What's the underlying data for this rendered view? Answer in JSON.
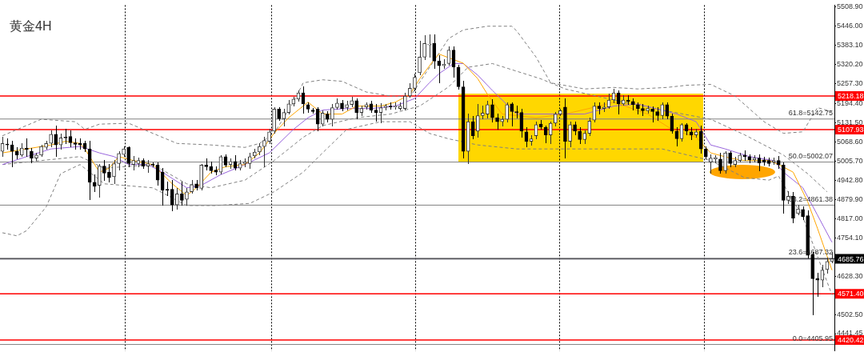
{
  "chart_data": {
    "type": "candlestick",
    "title": "黄金4H",
    "categories": [
      null,
      null,
      null,
      null,
      null,
      null,
      null,
      null,
      null,
      null,
      null,
      null,
      null,
      null,
      null,
      null,
      null,
      null,
      null,
      null,
      null,
      null,
      null,
      null,
      null,
      null,
      null,
      null,
      null,
      null,
      null,
      null,
      null,
      null,
      null,
      null,
      null,
      null,
      null,
      null,
      null,
      null,
      null,
      null,
      null,
      null,
      null,
      null,
      null,
      null,
      null,
      null,
      null,
      null,
      null,
      null,
      null,
      null,
      null,
      null,
      null,
      null,
      null,
      null,
      null,
      null,
      null,
      null,
      null,
      null,
      null,
      null,
      null,
      null,
      null,
      null,
      null,
      null,
      null,
      null,
      null,
      null,
      null,
      null,
      null,
      null,
      null,
      null,
      null,
      null,
      null,
      null,
      null,
      null,
      null,
      null,
      null,
      null,
      null,
      null,
      null,
      null,
      null,
      null,
      null,
      null,
      null,
      null,
      null,
      null,
      null,
      null,
      null,
      null,
      null,
      null,
      null,
      null,
      null,
      null,
      null,
      null,
      null,
      null,
      null,
      null,
      null,
      null,
      null,
      null,
      null,
      null,
      null,
      null,
      null,
      null,
      null,
      null,
      null,
      null,
      null,
      null,
      null,
      null,
      null,
      null,
      null,
      null,
      null,
      null,
      null,
      null,
      null,
      null,
      null,
      null,
      null,
      null,
      null,
      null,
      null,
      null,
      null,
      null,
      null,
      null,
      null,
      null,
      null,
      null,
      null,
      null
    ],
    "colors": [
      "#333333",
      "#000000",
      "#000000",
      "#000000",
      "#333333",
      "#000000",
      "#000000",
      "#333333",
      "#333333",
      "#333333",
      "#333333",
      "#000000",
      "#333333",
      "#000000",
      "#000000",
      "#000000",
      "#000000",
      "#000000",
      "#000000",
      "#000000",
      "#333333",
      "#000000",
      "#000000",
      "#333333",
      "#333333",
      "#333333",
      "#000000",
      "#333333",
      "#333333",
      "#000000",
      "#333333",
      "#000000",
      "#000000",
      "#000000",
      "#000000",
      "#000000",
      "#333333",
      "#000000",
      "#333333",
      "#333333",
      "#000000",
      "#333333",
      "#000000",
      "#000000",
      "#000000",
      "#333333",
      "#000000",
      "#333333",
      "#000000",
      "#333333",
      "#333333",
      "#333333",
      "#333333",
      "#333333",
      "#333333",
      "#333333",
      "#333333",
      "#000000",
      "#333333",
      "#333333",
      "#333333",
      "#333333",
      "#000000",
      "#000000",
      "#000000",
      "#000000",
      "#333333",
      "#000000",
      "#333333",
      "#333333",
      "#000000",
      "#333333",
      "#333333",
      "#000000",
      "#333333",
      "#333333",
      "#000000",
      "#000000",
      "#333333",
      "#333333",
      "#000000",
      "#333333",
      "#333333",
      "#333333",
      "#333333",
      "#333333",
      "#333333",
      "#333333",
      "#333333",
      "#000000",
      "#000000",
      "#333333",
      "#333333",
      "#000000",
      "#000000",
      "#000000",
      "#333333",
      "#000000",
      "#333333",
      "#333333",
      "#333333",
      "#000000",
      "#000000",
      "#333333",
      "#333333",
      "#000000",
      "#000000",
      "#000000",
      "#000000",
      "#333333",
      "#333333",
      "#000000",
      "#000000",
      "#333333",
      "#333333",
      "#333333",
      "#000000",
      "#333333",
      "#000000",
      "#000000",
      "#333333",
      "#333333",
      "#333333",
      "#000000",
      "#333333",
      "#333333",
      "#333333",
      "#000000",
      "#333333",
      "#000000",
      "#000000",
      "#000000",
      "#000000",
      "#333333",
      "#000000",
      "#000000",
      "#333333",
      "#000000",
      "#000000",
      "#000000",
      "#333333",
      "#000000",
      "#000000",
      "#333333",
      "#000000",
      "#000000",
      "#333333",
      "#333333",
      "#000000",
      "#333333",
      "#000000",
      "#333333",
      "#333333",
      "#000000",
      "#000000",
      "#333333",
      "#000000",
      "#000000",
      "#000000",
      "#333333",
      "#000000",
      "#000000",
      "#333333",
      "#000000",
      "#333333",
      "#000000",
      "#000000",
      "#000000",
      "#000000",
      "#333333",
      "#333333",
      "#333333"
    ],
    "ohlc": [
      [
        5037,
        5083,
        5020,
        5063
      ],
      [
        5060,
        5078,
        5045,
        5058
      ],
      [
        5058,
        5070,
        4987,
        5037
      ],
      [
        5037,
        5050,
        5012,
        5025
      ],
      [
        5025,
        5063,
        5020,
        5048
      ],
      [
        5048,
        5078,
        5020,
        5043
      ],
      [
        5037,
        5048,
        4999,
        5015
      ],
      [
        5015,
        5032,
        5007,
        5025
      ],
      [
        5025,
        5058,
        5020,
        5053
      ],
      [
        5050,
        5070,
        5043,
        5063
      ],
      [
        5063,
        5103,
        5053,
        5093
      ],
      [
        5093,
        5121,
        5020,
        5058
      ],
      [
        5058,
        5093,
        5045,
        5081
      ],
      [
        5083,
        5109,
        5063,
        5081
      ],
      [
        5086,
        5103,
        5053,
        5065
      ],
      [
        5065,
        5078,
        5045,
        5060
      ],
      [
        5063,
        5078,
        5045,
        5058
      ],
      [
        5063,
        5070,
        5037,
        5045
      ],
      [
        5045,
        5070,
        4880,
        4936
      ],
      [
        4936,
        4961,
        4905,
        4923
      ],
      [
        4926,
        4994,
        4888,
        4989
      ],
      [
        4989,
        5007,
        4943,
        4966
      ],
      [
        4969,
        4994,
        4936,
        4951
      ],
      [
        4954,
        5007,
        4931,
        4997
      ],
      [
        4997,
        5037,
        4976,
        5030
      ],
      [
        5027,
        5053,
        5020,
        5045
      ],
      [
        5050,
        5053,
        4987,
        4997
      ],
      [
        4994,
        5020,
        4976,
        5007
      ],
      [
        4997,
        5015,
        4987,
        5007
      ],
      [
        5007,
        5012,
        4982,
        4989
      ],
      [
        4989,
        5007,
        4969,
        4997
      ],
      [
        4994,
        4999,
        4987,
        4992
      ],
      [
        4992,
        4999,
        4926,
        4943
      ],
      [
        4969,
        4982,
        4860,
        4910
      ],
      [
        4913,
        4936,
        4893,
        4910
      ],
      [
        4913,
        4941,
        4842,
        4862
      ],
      [
        4862,
        4916,
        4847,
        4898
      ],
      [
        4898,
        4936,
        4860,
        4877
      ],
      [
        4880,
        4916,
        4860,
        4905
      ],
      [
        4905,
        4941,
        4900,
        4928
      ],
      [
        4931,
        4943,
        4910,
        4918
      ],
      [
        4916,
        4994,
        4910,
        4992
      ],
      [
        4992,
        5012,
        4976,
        4987
      ],
      [
        4987,
        5002,
        4966,
        4974
      ],
      [
        4976,
        4987,
        4961,
        4969
      ],
      [
        4969,
        5022,
        4964,
        5020
      ],
      [
        5020,
        5027,
        4987,
        4992
      ],
      [
        4994,
        5012,
        4982,
        5004
      ],
      [
        5004,
        5022,
        4976,
        4982
      ],
      [
        4982,
        5007,
        4976,
        4997
      ],
      [
        4997,
        5012,
        4987,
        5002
      ],
      [
        4997,
        5032,
        4982,
        5020
      ],
      [
        5022,
        5043,
        5015,
        5035
      ],
      [
        5035,
        5063,
        5027,
        5053
      ],
      [
        5053,
        5083,
        4987,
        5073
      ],
      [
        5070,
        5109,
        5063,
        5101
      ],
      [
        5103,
        5180,
        5096,
        5175
      ],
      [
        5175,
        5180,
        5139,
        5144
      ],
      [
        5144,
        5175,
        5121,
        5164
      ],
      [
        5164,
        5203,
        5159,
        5192
      ],
      [
        5192,
        5215,
        5185,
        5208
      ],
      [
        5208,
        5236,
        5200,
        5228
      ],
      [
        5228,
        5248,
        5162,
        5192
      ],
      [
        5190,
        5197,
        5164,
        5175
      ],
      [
        5172,
        5177,
        5162,
        5167
      ],
      [
        5175,
        5180,
        5103,
        5126
      ],
      [
        5126,
        5170,
        5119,
        5162
      ],
      [
        5159,
        5167,
        5134,
        5142
      ],
      [
        5142,
        5190,
        5121,
        5180
      ],
      [
        5180,
        5210,
        5175,
        5195
      ],
      [
        5195,
        5203,
        5170,
        5177
      ],
      [
        5180,
        5200,
        5172,
        5190
      ],
      [
        5190,
        5215,
        5182,
        5203
      ],
      [
        5203,
        5210,
        5144,
        5164
      ],
      [
        5164,
        5185,
        5154,
        5177
      ],
      [
        5182,
        5197,
        5175,
        5190
      ],
      [
        5192,
        5200,
        5164,
        5172
      ],
      [
        5172,
        5190,
        5136,
        5164
      ],
      [
        5164,
        5192,
        5131,
        5180
      ],
      [
        5180,
        5190,
        5172,
        5185
      ],
      [
        5185,
        5197,
        5175,
        5182
      ],
      [
        5182,
        5197,
        5175,
        5185
      ],
      [
        5177,
        5195,
        5172,
        5185
      ],
      [
        5177,
        5228,
        5172,
        5218
      ],
      [
        5218,
        5258,
        5213,
        5243
      ],
      [
        5243,
        5291,
        5236,
        5279
      ],
      [
        5294,
        5396,
        5286,
        5345
      ],
      [
        5345,
        5416,
        5337,
        5390
      ],
      [
        5385,
        5418,
        5345,
        5388
      ],
      [
        5390,
        5418,
        5307,
        5332
      ],
      [
        5332,
        5350,
        5261,
        5317
      ],
      [
        5317,
        5337,
        5307,
        5322
      ],
      [
        5324,
        5380,
        5319,
        5368
      ],
      [
        5368,
        5380,
        5279,
        5312
      ],
      [
        5312,
        5319,
        5241,
        5248
      ],
      [
        5248,
        5266,
        5015,
        5037
      ],
      [
        5037,
        5159,
        4997,
        5134
      ],
      [
        5134,
        5152,
        5078,
        5088
      ],
      [
        5103,
        5190,
        5083,
        5154
      ],
      [
        5154,
        5185,
        5144,
        5162
      ],
      [
        5159,
        5200,
        5147,
        5190
      ],
      [
        5190,
        5205,
        5134,
        5147
      ],
      [
        5147,
        5159,
        5109,
        5134
      ],
      [
        5134,
        5152,
        5121,
        5142
      ],
      [
        5142,
        5195,
        5134,
        5190
      ],
      [
        5192,
        5197,
        5119,
        5167
      ],
      [
        5167,
        5185,
        5147,
        5164
      ],
      [
        5164,
        5175,
        5083,
        5103
      ],
      [
        5101,
        5114,
        5053,
        5070
      ],
      [
        5070,
        5088,
        5058,
        5078
      ],
      [
        5088,
        5134,
        5078,
        5124
      ],
      [
        5126,
        5139,
        5109,
        5116
      ],
      [
        5116,
        5121,
        5065,
        5091
      ],
      [
        5091,
        5134,
        5063,
        5129
      ],
      [
        5129,
        5164,
        5121,
        5159
      ],
      [
        5159,
        5175,
        5154,
        5170
      ],
      [
        5182,
        5210,
        5015,
        5070
      ],
      [
        5070,
        5134,
        5053,
        5124
      ],
      [
        5124,
        5134,
        5091,
        5103
      ],
      [
        5103,
        5114,
        5063,
        5076
      ],
      [
        5076,
        5103,
        5063,
        5096
      ],
      [
        5096,
        5147,
        5088,
        5136
      ],
      [
        5139,
        5197,
        5134,
        5185
      ],
      [
        5185,
        5197,
        5159,
        5177
      ],
      [
        5177,
        5195,
        5167,
        5182
      ],
      [
        5182,
        5225,
        5177,
        5205
      ],
      [
        5205,
        5241,
        5197,
        5228
      ],
      [
        5228,
        5236,
        5159,
        5192
      ],
      [
        5192,
        5218,
        5187,
        5205
      ],
      [
        5205,
        5220,
        5190,
        5200
      ],
      [
        5200,
        5210,
        5172,
        5190
      ],
      [
        5190,
        5197,
        5159,
        5177
      ],
      [
        5177,
        5190,
        5154,
        5170
      ],
      [
        5170,
        5185,
        5162,
        5177
      ],
      [
        5175,
        5182,
        5134,
        5167
      ],
      [
        5167,
        5180,
        5139,
        5154
      ],
      [
        5154,
        5195,
        5144,
        5190
      ],
      [
        5190,
        5195,
        5144,
        5152
      ],
      [
        5152,
        5159,
        5096,
        5103
      ],
      [
        5103,
        5114,
        5055,
        5078
      ],
      [
        5078,
        5129,
        5070,
        5124
      ],
      [
        5124,
        5129,
        5091,
        5103
      ],
      [
        5101,
        5114,
        5076,
        5091
      ],
      [
        5091,
        5109,
        5083,
        5101
      ],
      [
        5103,
        5121,
        5032,
        5045
      ],
      [
        5045,
        5053,
        5012,
        5020
      ],
      [
        5002,
        5027,
        4966,
        5015
      ],
      [
        5012,
        5022,
        4999,
        5017
      ],
      [
        5012,
        5032,
        4966,
        4974
      ],
      [
        4974,
        5037,
        4966,
        5032
      ],
      [
        5032,
        5037,
        4987,
        4997
      ],
      [
        4994,
        5017,
        4987,
        5007
      ],
      [
        5007,
        5032,
        5002,
        5025
      ],
      [
        5025,
        5040,
        5007,
        5020
      ],
      [
        5020,
        5027,
        4999,
        5009
      ],
      [
        5009,
        5022,
        5002,
        5015
      ],
      [
        5015,
        5027,
        4974,
        4999
      ],
      [
        5009,
        5017,
        4992,
        5002
      ],
      [
        5007,
        5015,
        4989,
        4997
      ],
      [
        5002,
        5015,
        4994,
        5007
      ],
      [
        5007,
        5020,
        4982,
        4994
      ],
      [
        4992,
        4999,
        4834,
        4877
      ],
      [
        4877,
        4905,
        4867,
        4890
      ],
      [
        4890,
        4903,
        4804,
        4819
      ],
      [
        4834,
        4860,
        4829,
        4849
      ],
      [
        4847,
        4855,
        4814,
        4824
      ],
      [
        4827,
        4842,
        4689,
        4697
      ],
      [
        4700,
        4707,
        4504,
        4621
      ],
      [
        4621,
        4639,
        4562,
        4616
      ],
      [
        4616,
        4664,
        4595,
        4649
      ],
      [
        4651,
        4689,
        4639,
        4677
      ],
      [
        4677,
        4707,
        4672,
        4686
      ]
    ],
    "series": [
      {
        "type": "line",
        "color": "#ffa500",
        "line_style": "solid",
        "values": [
          5032,
          null,
          null,
          null,
          null,
          5045,
          null,
          null,
          null,
          null,
          5058,
          null,
          null,
          5070,
          null,
          null,
          5063,
          5045,
          null,
          null,
          4969,
          null,
          4982,
          null,
          5020,
          null,
          null,
          5007,
          null,
          null,
          null,
          4994,
          null,
          null,
          null,
          4931,
          null,
          null,
          4893,
          null,
          4918,
          null,
          null,
          4969,
          null,
          null,
          4987,
          null,
          null,
          null,
          4994,
          null,
          null,
          5032,
          null,
          null,
          5096,
          null,
          null,
          5147,
          null,
          null,
          null,
          5198,
          null,
          null,
          5159,
          null,
          null,
          null,
          5159,
          null,
          null,
          5185,
          null,
          null,
          null,
          null,
          5185,
          null,
          null,
          5198,
          null,
          null,
          5223,
          null,
          5274,
          null,
          null,
          5337,
          5355,
          null,
          null,
          5337,
          null,
          5325,
          null,
          null,
          5274,
          null,
          5223,
          null,
          null,
          5159,
          null,
          null,
          null,
          null,
          null,
          null,
          5147,
          null,
          null,
          null,
          null,
          null,
          5159,
          null,
          null,
          null,
          null,
          null,
          null,
          5185,
          null,
          null,
          5198,
          null,
          null,
          null,
          null,
          null,
          null,
          5159,
          null,
          null,
          null,
          null,
          5109,
          null,
          null,
          null,
          null,
          5083,
          null,
          null,
          5032,
          null,
          null,
          null,
          5015,
          null,
          null,
          5007,
          null,
          null,
          null,
          null,
          5007,
          null,
          4994,
          null,
          null,
          4969,
          null,
          null,
          4872,
          null,
          4786,
          null,
          null,
          4649
        ]
      },
      {
        "type": "line",
        "color": "#9966dd",
        "line_style": "solid",
        "values": [
          4994,
          null,
          null,
          null,
          null,
          5020,
          null,
          null,
          null,
          null,
          5045,
          null,
          null,
          null,
          null,
          null,
          5053,
          null,
          null,
          null,
          5032,
          null,
          null,
          5020,
          null,
          null,
          4994,
          null,
          null,
          null,
          4994,
          null,
          null,
          4969,
          null,
          null,
          null,
          null,
          4918,
          null,
          null,
          4926,
          null,
          null,
          null,
          4961,
          null,
          null,
          null,
          null,
          4994,
          null,
          null,
          null,
          null,
          5032,
          null,
          null,
          null,
          null,
          5109,
          null,
          null,
          5147,
          null,
          null,
          5172,
          null,
          null,
          null,
          null,
          5177,
          null,
          null,
          null,
          null,
          5177,
          null,
          null,
          null,
          null,
          5185,
          null,
          null,
          null,
          5210,
          null,
          null,
          5261,
          null,
          5291,
          null,
          null,
          5324,
          null,
          5324,
          null,
          null,
          5286,
          null,
          null,
          5236,
          null,
          null,
          null,
          null,
          5159,
          null,
          null,
          null,
          null,
          null,
          null,
          null,
          null,
          null,
          null,
          null,
          null,
          null,
          5159,
          null,
          null,
          null,
          null,
          null,
          5185,
          null,
          null,
          null,
          null,
          5192,
          null,
          null,
          null,
          null,
          null,
          null,
          null,
          5159,
          null,
          null,
          null,
          5134,
          null,
          null,
          5058,
          null,
          null,
          5045,
          null,
          null,
          null,
          null,
          5020,
          null,
          null,
          null,
          null,
          5007,
          null,
          4969,
          null,
          null,
          null,
          4918,
          null,
          null,
          4829,
          null,
          null,
          4740
        ]
      },
      {
        "type": "line",
        "color": "#808080",
        "line_style": "dashed",
        "values": [
          5088,
          null,
          null,
          null,
          null,
          null,
          null,
          null,
          5142,
          null,
          null,
          null,
          null,
          null,
          null,
          5134,
          null,
          5109,
          null,
          null,
          5126,
          null,
          null,
          null,
          null,
          null,
          5129,
          null,
          null,
          null,
          null,
          5096,
          null,
          null,
          null,
          null,
          5063,
          null,
          null,
          null,
          null,
          null,
          null,
          5058,
          null,
          null,
          null,
          null,
          null,
          null,
          5050,
          null,
          null,
          5063,
          null,
          null,
          5096,
          null,
          null,
          null,
          5198,
          null,
          5261,
          null,
          null,
          null,
          5271,
          null,
          null,
          null,
          5266,
          null,
          null,
          null,
          null,
          5231,
          null,
          null,
          null,
          null,
          5218,
          null,
          null,
          null,
          5215,
          null,
          null,
          null,
          null,
          null,
          null,
          null,
          5406,
          null,
          null,
          5434,
          null,
          null,
          null,
          null,
          5446,
          null,
          null,
          null,
          null,
          5446,
          5431,
          null,
          null,
          null,
          5345,
          null,
          null,
          5261,
          null,
          null,
          null,
          null,
          null,
          null,
          5241,
          null,
          null,
          null,
          null,
          null,
          5246,
          null,
          null,
          null,
          null,
          5241,
          null,
          null,
          null,
          null,
          null,
          5246,
          null,
          null,
          null,
          5253,
          null,
          null,
          null,
          null,
          5256,
          null,
          null,
          null,
          null,
          5218,
          null,
          null,
          null,
          null,
          null,
          5134,
          null,
          null,
          null,
          5096,
          null,
          null,
          null,
          5101,
          null,
          null,
          5180,
          null,
          null,
          5167
        ]
      },
      {
        "type": "line",
        "color": "#808080",
        "line_style": "dashed",
        "values": [
          4994,
          null,
          null,
          null,
          null,
          null,
          null,
          null,
          5007,
          null,
          null,
          null,
          null,
          null,
          null,
          null,
          5020,
          null,
          null,
          null,
          null,
          4982,
          null,
          null,
          null,
          null,
          null,
          null,
          null,
          null,
          null,
          4994,
          null,
          null,
          null,
          null,
          null,
          null,
          4931,
          null,
          null,
          null,
          null,
          4918,
          null,
          null,
          null,
          null,
          null,
          null,
          4943,
          null,
          null,
          null,
          null,
          null,
          5007,
          null,
          null,
          null,
          null,
          null,
          5083,
          null,
          null,
          null,
          5121,
          null,
          null,
          null,
          null,
          null,
          null,
          5147,
          null,
          null,
          null,
          null,
          null,
          null,
          5159,
          null,
          null,
          null,
          null,
          null,
          5185,
          null,
          null,
          null,
          null,
          null,
          5248,
          null,
          null,
          null,
          5312,
          null,
          null,
          null,
          null,
          5324,
          null,
          null,
          null,
          null,
          5299,
          null,
          null,
          null,
          null,
          5274,
          null,
          null,
          null,
          null,
          5241,
          null,
          null,
          null,
          null,
          null,
          null,
          null,
          null,
          null,
          5205,
          null,
          null,
          null,
          null,
          null,
          null,
          null,
          null,
          null,
          5172,
          null,
          null,
          null,
          null,
          null,
          null,
          null,
          null,
          null,
          5142,
          null,
          null,
          null,
          null,
          null,
          null,
          5091,
          null,
          null,
          null,
          null,
          null,
          null,
          null,
          5025,
          null,
          null,
          null,
          null,
          4964,
          null,
          null,
          null,
          4905,
          null
        ]
      },
      {
        "type": "line",
        "color": "#808080",
        "line_style": "dashed",
        "values": [
          4771,
          null,
          null,
          4761,
          null,
          4778,
          null,
          null,
          null,
          4855,
          null,
          null,
          4964,
          null,
          null,
          null,
          4994,
          null,
          null,
          null,
          null,
          4931,
          null,
          null,
          null,
          null,
          null,
          null,
          null,
          null,
          null,
          4918,
          null,
          null,
          null,
          null,
          null,
          null,
          4860,
          null,
          null,
          null,
          null,
          null,
          4860,
          null,
          null,
          null,
          null,
          null,
          null,
          4867,
          null,
          null,
          null,
          null,
          4905,
          null,
          null,
          null,
          null,
          null,
          4969,
          null,
          null,
          null,
          5032,
          null,
          null,
          null,
          null,
          5109,
          null,
          null,
          null,
          null,
          null,
          null,
          5134,
          null,
          null,
          null,
          null,
          null,
          5134,
          null,
          null,
          null,
          5096,
          null,
          null,
          null,
          5078,
          null,
          null,
          null,
          null,
          null,
          5058,
          null,
          null,
          null,
          null,
          null,
          null,
          null,
          5045,
          null,
          null,
          null,
          null,
          null,
          null,
          null,
          null,
          null,
          null,
          null,
          null,
          null,
          null,
          null,
          null,
          null,
          null,
          null,
          null,
          null,
          null,
          null,
          null,
          null,
          null,
          null,
          null,
          null,
          5045,
          null,
          null,
          null,
          null,
          null,
          null,
          null,
          null,
          null,
          5007,
          null,
          null,
          null,
          null,
          null,
          null,
          4951,
          null,
          null,
          null,
          null,
          4943,
          null,
          4956,
          null,
          null,
          null,
          null,
          4822,
          null,
          null,
          4695,
          null,
          null,
          4568
        ]
      }
    ],
    "ylim": [
      4385,
      5515
    ],
    "yticks": [
      {
        "value": 5508.9,
        "label": "5508.90"
      },
      {
        "value": 5446,
        "label": "5446.00"
      },
      {
        "value": 5383.1,
        "label": "5383.10"
      },
      {
        "value": 5320.2,
        "label": "5320.20"
      },
      {
        "value": 5257.3,
        "label": "5257.30"
      },
      {
        "value": 5194.4,
        "label": "5194.40"
      },
      {
        "value": 5131.5,
        "label": "5131.50"
      },
      {
        "value": 5068.6,
        "label": "5068.60"
      },
      {
        "value": 5005.7,
        "label": "5005.70"
      },
      {
        "value": 4942.8,
        "label": "4942.80"
      },
      {
        "value": 4879.9,
        "label": "4879.90"
      },
      {
        "value": 4817,
        "label": "4817.00"
      },
      {
        "value": 4754.1,
        "label": "4754.10"
      },
      {
        "value": 4628.3,
        "label": "4628.30"
      },
      {
        "value": 4502.5,
        "label": "4502.50"
      },
      {
        "value": 4441.45,
        "label": "4441.45"
      }
    ],
    "ref_lines": [
      {
        "axis": "y",
        "value": 5218.18,
        "label": "5218.18",
        "color": "#ff0000",
        "line_style": "solid"
      },
      {
        "axis": "y",
        "value": 5107.93,
        "label": "5107.93",
        "color": "#ff0000",
        "line_style": "solid"
      },
      {
        "axis": "y",
        "value": 4571.4,
        "label": "4571.40",
        "color": "#ff0000",
        "line_style": "solid"
      },
      {
        "axis": "y",
        "value": 4420.42,
        "label": "4420.42",
        "color": "#ff0000",
        "line_style": "solid"
      },
      {
        "axis": "y",
        "value": 4685.76,
        "label": "4685.76",
        "color": "#2b2b3a",
        "line_style": "solid"
      },
      {
        "axis": "y",
        "value": 5142.75,
        "label": "61.8=5142.75",
        "color": "#808080",
        "line_style": "solid"
      },
      {
        "axis": "y",
        "value": 5002.07,
        "label": "50.0=5002.07",
        "color": "#808080",
        "line_style": "solid"
      },
      {
        "axis": "y",
        "value": 4861.38,
        "label": "38.2=4861.38",
        "color": "#808080",
        "line_style": "solid"
      },
      {
        "axis": "y",
        "value": 4687.32,
        "label": "23.6=4687.32",
        "color": "#808080",
        "line_style": "solid"
      },
      {
        "axis": "y",
        "value": 4405.95,
        "label": "0.0=4405.95",
        "color": "#808080",
        "line_style": "solid"
      }
    ],
    "legend": false,
    "tick_labels": "y"
  }
}
